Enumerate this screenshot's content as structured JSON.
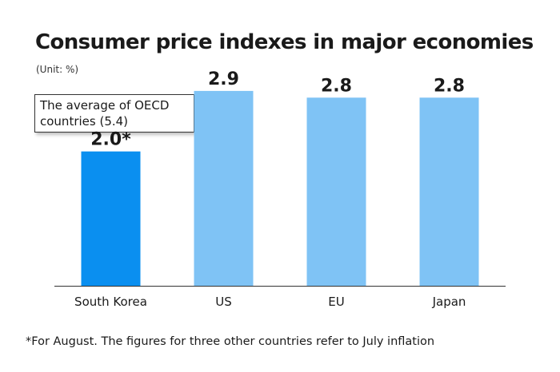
{
  "chart_data": {
    "type": "bar",
    "title": "Consumer price indexes in major economies",
    "subtitle": "(Unit: %)",
    "categories": [
      "South Korea",
      "US",
      "EU",
      "Japan"
    ],
    "values": [
      2.0,
      2.9,
      2.8,
      2.8
    ],
    "value_labels": [
      "2.0*",
      "2.9",
      "2.8",
      "2.8"
    ],
    "colors": [
      "#0a8ff0",
      "#7fc3f5",
      "#7fc3f5",
      "#7fc3f5"
    ],
    "ylim": [
      0,
      3.6
    ],
    "xlabel": "",
    "ylabel": "",
    "grid": false,
    "annotation": "The average of OECD countries (5.4)",
    "footnote": "*For August. The figures for three other countries refer to July inflation"
  }
}
